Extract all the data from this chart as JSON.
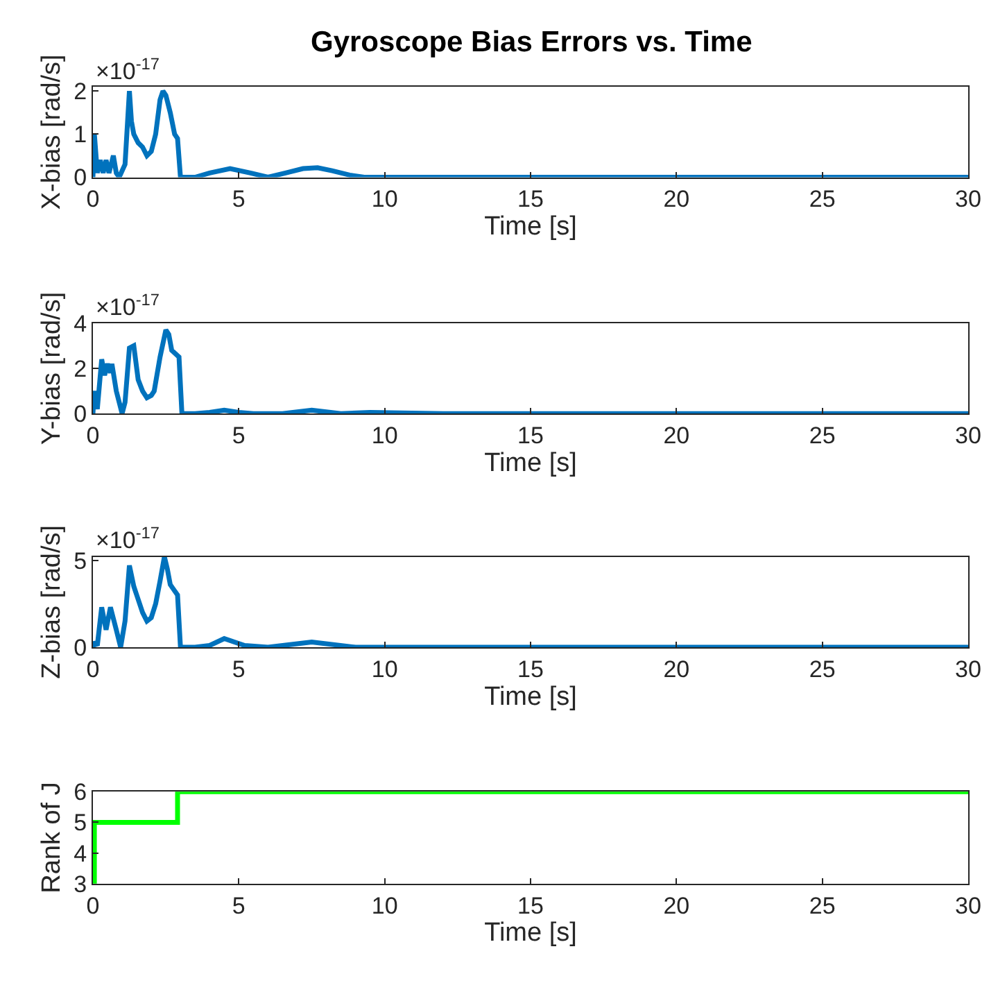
{
  "chart_data": [
    {
      "type": "line",
      "title": "Gyroscope Bias Errors vs. Time",
      "xlabel": "Time [s]",
      "ylabel": "X-bias [rad/s]",
      "annotations": [
        "×10$^{-17}$"
      ],
      "x": [
        0,
        0.05,
        0.15,
        0.25,
        0.35,
        0.45,
        0.55,
        0.7,
        0.8,
        0.9,
        1.1,
        1.25,
        1.32,
        1.4,
        1.55,
        1.7,
        1.85,
        2.0,
        2.15,
        2.3,
        2.4,
        2.5,
        2.65,
        2.8,
        2.9,
        3.0,
        3.5,
        4.0,
        4.7,
        5.4,
        6.0,
        6.6,
        7.2,
        7.7,
        8.2,
        8.8,
        9.3,
        12,
        20,
        30
      ],
      "series": [
        {
          "color": "#0072bd",
          "values": [
            0,
            1.0,
            0.1,
            0.4,
            0.1,
            0.4,
            0.1,
            0.5,
            0.1,
            0,
            0.3,
            2.0,
            1.3,
            1.0,
            0.8,
            0.7,
            0.5,
            0.6,
            1.0,
            1.8,
            2.0,
            1.9,
            1.5,
            1.0,
            0.9,
            0,
            0,
            0.1,
            0.2,
            0.1,
            0,
            0.1,
            0.2,
            0.22,
            0.15,
            0.05,
            0,
            0,
            0,
            0
          ]
        }
      ],
      "xlim": [
        0,
        30
      ],
      "xticks": [
        0,
        5,
        10,
        15,
        20,
        25,
        30
      ],
      "ylim": [
        0,
        2.1
      ],
      "yticks": [
        0,
        1,
        2
      ]
    },
    {
      "type": "line",
      "xlabel": "Time [s]",
      "ylabel": "Y-bias [rad/s]",
      "annotations": [
        "×10$^{-17}$"
      ],
      "x": [
        0,
        0.05,
        0.15,
        0.3,
        0.4,
        0.5,
        0.6,
        0.65,
        0.8,
        1.0,
        1.1,
        1.25,
        1.4,
        1.55,
        1.7,
        1.85,
        2.0,
        2.1,
        2.3,
        2.5,
        2.6,
        2.7,
        2.95,
        3.05,
        3.5,
        4.0,
        4.5,
        5.0,
        5.5,
        6.5,
        7.5,
        8.5,
        9.5,
        12,
        20,
        30
      ],
      "series": [
        {
          "color": "#0072bd",
          "values": [
            0,
            1.0,
            0.2,
            2.4,
            1.7,
            2.2,
            1.8,
            2.2,
            1.0,
            0,
            0.5,
            2.9,
            3.0,
            1.5,
            1.0,
            0.7,
            0.8,
            1.0,
            2.5,
            3.7,
            3.5,
            2.8,
            2.5,
            0,
            0,
            0.05,
            0.15,
            0.05,
            0,
            0,
            0.15,
            0,
            0.05,
            0,
            0,
            0
          ]
        }
      ],
      "xlim": [
        0,
        30
      ],
      "xticks": [
        0,
        5,
        10,
        15,
        20,
        25,
        30
      ],
      "ylim": [
        0,
        4
      ],
      "yticks": [
        0,
        2,
        4
      ]
    },
    {
      "type": "line",
      "xlabel": "Time [s]",
      "ylabel": "Z-bias [rad/s]",
      "annotations": [
        "×10$^{-17}$"
      ],
      "x": [
        0,
        0.05,
        0.15,
        0.3,
        0.45,
        0.6,
        0.8,
        0.95,
        1.1,
        1.25,
        1.4,
        1.5,
        1.7,
        1.85,
        2.0,
        2.15,
        2.3,
        2.45,
        2.55,
        2.65,
        2.9,
        3.0,
        3.5,
        4.0,
        4.5,
        5.2,
        6.0,
        7.5,
        9.0,
        12,
        20,
        30
      ],
      "series": [
        {
          "color": "#0072bd",
          "values": [
            0,
            0.3,
            0.1,
            2.3,
            1.0,
            2.3,
            1.0,
            0,
            1.5,
            4.7,
            3.5,
            3.0,
            2.0,
            1.5,
            1.7,
            2.5,
            3.8,
            5.2,
            4.5,
            3.6,
            3.0,
            0,
            0,
            0.1,
            0.5,
            0.1,
            0,
            0.3,
            0,
            0,
            0,
            0
          ]
        }
      ],
      "xlim": [
        0,
        30
      ],
      "xticks": [
        0,
        5,
        10,
        15,
        20,
        25,
        30
      ],
      "ylim": [
        0,
        5.2
      ],
      "yticks": [
        0,
        5
      ]
    },
    {
      "type": "step",
      "xlabel": "Time [s]",
      "ylabel": "Rank of J",
      "x": [
        0,
        0.05,
        2.9,
        30
      ],
      "series": [
        {
          "color": "#00ff00",
          "values": [
            3,
            5,
            6,
            6
          ]
        }
      ],
      "xlim": [
        0,
        30
      ],
      "xticks": [
        0,
        5,
        10,
        15,
        20,
        25,
        30
      ],
      "ylim": [
        3,
        6
      ],
      "yticks": [
        3,
        4,
        5,
        6
      ]
    }
  ]
}
